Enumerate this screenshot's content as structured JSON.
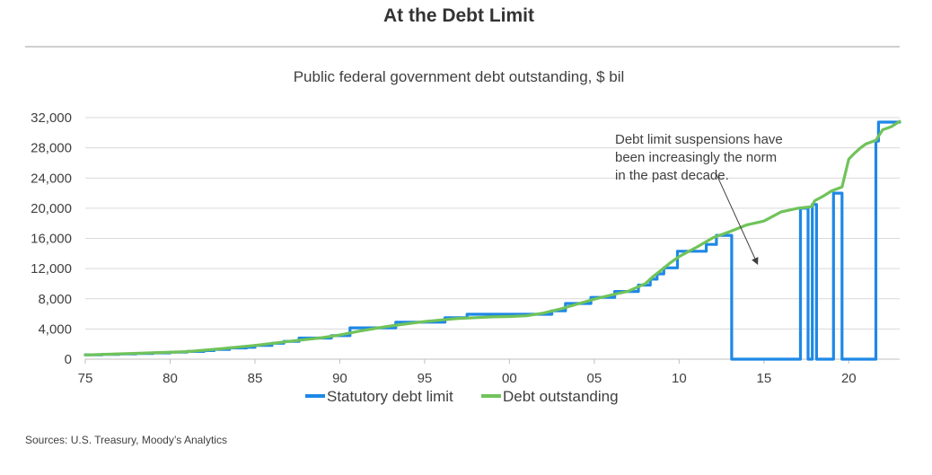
{
  "title": "At the Debt Limit",
  "subtitle": "Public federal government debt outstanding, $ bil",
  "source": "Sources: U.S. Treasury, Moody’s Analytics",
  "colors": {
    "limit": "#1e88e5",
    "debt": "#70c35a",
    "grid": "#d9d9d9",
    "axis": "#404040"
  },
  "chart_data": {
    "type": "line",
    "ylim": [
      0,
      32000
    ],
    "xlim": [
      1975,
      2023
    ],
    "yticks": [
      0,
      4000,
      8000,
      12000,
      16000,
      20000,
      24000,
      28000,
      32000
    ],
    "ytick_labels": [
      "0",
      "4,000",
      "8,000",
      "12,000",
      "16,000",
      "20,000",
      "24,000",
      "28,000",
      "32,000"
    ],
    "xticks": [
      1975,
      1980,
      1985,
      1990,
      1995,
      2000,
      2005,
      2010,
      2015,
      2020
    ],
    "xtick_labels": [
      "75",
      "80",
      "85",
      "90",
      "95",
      "00",
      "05",
      "10",
      "15",
      "20"
    ],
    "annotation": {
      "lines": [
        "Debt limit suspensions have",
        "been increasingly the norm",
        "in the past decade."
      ],
      "arrow_from": [
        2012.2,
        24500
      ],
      "arrow_to": [
        2014.6,
        12700
      ]
    },
    "legend": {
      "position": "bottom"
    },
    "series": [
      {
        "name": "Statutory debt limit",
        "style": "step",
        "x": [
          1975.0,
          1976.0,
          1977.0,
          1978.0,
          1979.0,
          1980.0,
          1981.0,
          1982.0,
          1982.6,
          1983.5,
          1984.5,
          1985.0,
          1986.0,
          1986.7,
          1987.6,
          1988.5,
          1989.5,
          1990.6,
          1993.3,
          1996.2,
          1997.5,
          2002.5,
          2003.3,
          2004.8,
          2006.2,
          2007.6,
          2008.3,
          2008.7,
          2009.1,
          2009.9,
          2011.6,
          2012.2,
          2013.1,
          2017.15,
          2017.6,
          2017.85,
          2018.1,
          2019.1,
          2019.6,
          2021.6,
          2021.75,
          2023.0
        ],
        "y": [
          580,
          640,
          700,
          760,
          830,
          930,
          1020,
          1140,
          1290,
          1490,
          1570,
          1820,
          2110,
          2350,
          2800,
          2800,
          3120,
          4150,
          4900,
          5500,
          5950,
          6400,
          7380,
          8180,
          8970,
          9820,
          10600,
          11300,
          12100,
          14300,
          15200,
          16400,
          0,
          20000,
          0,
          20500,
          0,
          22000,
          0,
          28900,
          31400,
          31400
        ]
      },
      {
        "name": "Debt outstanding",
        "style": "line",
        "x": [
          1975,
          1977,
          1979,
          1981,
          1983,
          1985,
          1987,
          1989,
          1990,
          1991,
          1992,
          1993,
          1994,
          1995,
          1996,
          1997,
          1998,
          1999,
          2000,
          2001,
          2002,
          2003,
          2004,
          2005,
          2006,
          2007,
          2008,
          2008.5,
          2009,
          2009.5,
          2010,
          2011,
          2012,
          2013,
          2014,
          2015,
          2016,
          2017,
          2017.8,
          2018,
          2018.5,
          2019,
          2019.6,
          2020,
          2020.3,
          2020.7,
          2021,
          2021.6,
          2022,
          2022.5,
          2023
        ],
        "y": [
          560,
          700,
          840,
          1000,
          1380,
          1820,
          2350,
          2850,
          3200,
          3650,
          4050,
          4400,
          4700,
          4980,
          5200,
          5400,
          5500,
          5600,
          5650,
          5750,
          6100,
          6650,
          7300,
          7950,
          8500,
          9000,
          10000,
          11000,
          11900,
          12800,
          13600,
          14800,
          16100,
          16900,
          17800,
          18300,
          19500,
          20000,
          20200,
          21000,
          21600,
          22300,
          22800,
          26500,
          27200,
          28000,
          28500,
          29000,
          30400,
          30800,
          31500
        ]
      }
    ]
  }
}
